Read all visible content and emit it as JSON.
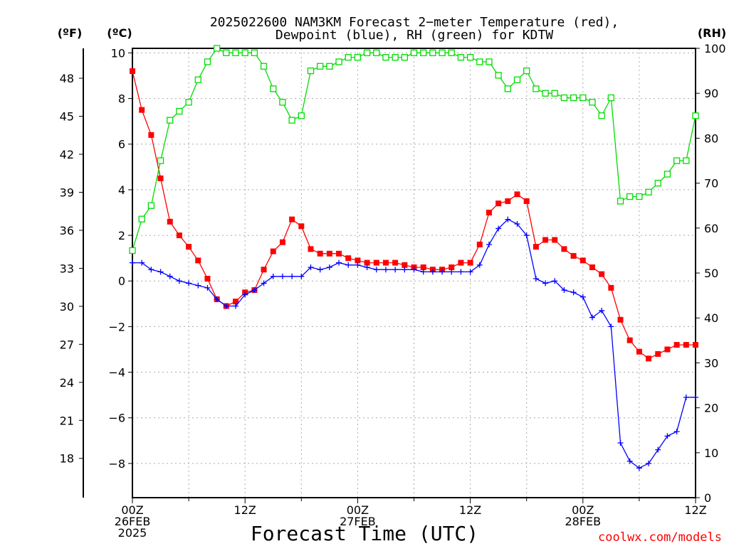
{
  "chart_data": {
    "type": "line",
    "title": "2025022600 NAM3KM Forecast 2−meter Temperature (red),",
    "subtitle": "Dewpoint (blue), RH (green) for KDTW",
    "xlabel": "Forecast Time (UTC)",
    "left_outer_unit": "(ºF)",
    "left_unit": "(ºC)",
    "right_unit": "(RH)",
    "credit": "coolwx.com/models",
    "x_range_hours": [
      0,
      60
    ],
    "ylim_c": [
      -9.5,
      10.2
    ],
    "ylim_rh": [
      0,
      100
    ],
    "grid": true,
    "x_tick_labels": [
      {
        "h": 0,
        "lines": [
          "00Z",
          "26FEB",
          "2025"
        ]
      },
      {
        "h": 12,
        "lines": [
          "12Z"
        ]
      },
      {
        "h": 24,
        "lines": [
          "00Z",
          "27FEB"
        ]
      },
      {
        "h": 36,
        "lines": [
          "12Z"
        ]
      },
      {
        "h": 48,
        "lines": [
          "00Z",
          "28FEB"
        ]
      },
      {
        "h": 60,
        "lines": [
          "12Z"
        ]
      }
    ],
    "y_ticks_c": [
      10,
      8,
      6,
      4,
      2,
      0,
      -2,
      -4,
      -6,
      -8
    ],
    "y_ticks_f": [
      48,
      45,
      42,
      39,
      36,
      33,
      30,
      27,
      24,
      21,
      18
    ],
    "y_ticks_rh": [
      100,
      90,
      80,
      70,
      60,
      50,
      40,
      30,
      20,
      10,
      0
    ],
    "hours": [
      0,
      1,
      2,
      3,
      4,
      5,
      6,
      7,
      8,
      9,
      10,
      11,
      12,
      13,
      14,
      15,
      16,
      17,
      18,
      19,
      20,
      21,
      22,
      23,
      24,
      25,
      26,
      27,
      28,
      29,
      30,
      31,
      32,
      33,
      34,
      35,
      36,
      37,
      38,
      39,
      40,
      41,
      42,
      43,
      44,
      45,
      46,
      47,
      48,
      49,
      50,
      51,
      52,
      53,
      54,
      55,
      56,
      57,
      58,
      59,
      60
    ],
    "series": [
      {
        "name": "Temperature",
        "unit": "C",
        "color": "#ff0000",
        "marker": "filled-square",
        "values": [
          9.2,
          7.5,
          6.4,
          4.5,
          2.6,
          2.0,
          1.5,
          0.9,
          0.1,
          -0.8,
          -1.1,
          -0.9,
          -0.5,
          -0.4,
          0.5,
          1.3,
          1.7,
          2.7,
          2.4,
          1.4,
          1.2,
          1.2,
          1.2,
          1.0,
          0.9,
          0.8,
          0.8,
          0.8,
          0.8,
          0.7,
          0.6,
          0.6,
          0.5,
          0.5,
          0.6,
          0.8,
          0.8,
          1.6,
          3.0,
          3.4,
          3.5,
          3.8,
          3.5,
          1.5,
          1.8,
          1.8,
          1.4,
          1.1,
          0.9,
          0.6,
          0.3,
          -0.3,
          -1.7,
          -2.6,
          -3.1,
          -3.4,
          -3.2,
          -3.0,
          -2.8,
          -2.8,
          -2.8
        ]
      },
      {
        "name": "Dewpoint",
        "unit": "C",
        "color": "#0000ff",
        "marker": "plus",
        "values": [
          0.8,
          0.8,
          0.5,
          0.4,
          0.2,
          0.0,
          -0.1,
          -0.2,
          -0.3,
          -0.8,
          -1.1,
          -1.1,
          -0.6,
          -0.4,
          -0.1,
          0.2,
          0.2,
          0.2,
          0.2,
          0.6,
          0.5,
          0.6,
          0.8,
          0.7,
          0.7,
          0.6,
          0.5,
          0.5,
          0.5,
          0.5,
          0.5,
          0.4,
          0.4,
          0.4,
          0.4,
          0.4,
          0.4,
          0.7,
          1.6,
          2.3,
          2.7,
          2.5,
          2.0,
          0.1,
          -0.1,
          0.0,
          -0.4,
          -0.5,
          -0.7,
          -1.6,
          -1.3,
          -2.0,
          -7.1,
          -7.9,
          -8.2,
          -8.0,
          -7.4,
          -6.8,
          -6.6,
          -5.1,
          -5.1
        ]
      },
      {
        "name": "RH",
        "unit": "%",
        "color": "#00dd00",
        "marker": "open-square",
        "values": [
          55,
          62,
          65,
          75,
          84,
          86,
          88,
          93,
          97,
          100,
          99,
          99,
          99,
          99,
          96,
          91,
          88,
          84,
          85,
          95,
          96,
          96,
          97,
          98,
          98,
          99,
          99,
          98,
          98,
          98,
          99,
          99,
          99,
          99,
          99,
          98,
          98,
          97,
          97,
          94,
          91,
          93,
          95,
          91,
          90,
          90,
          89,
          89,
          89,
          88,
          85,
          89,
          66,
          67,
          67,
          68,
          70,
          72,
          75,
          75,
          85
        ]
      }
    ]
  }
}
